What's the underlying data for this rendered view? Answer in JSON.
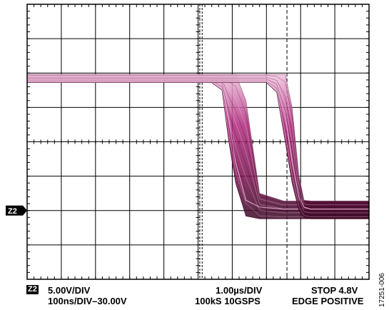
{
  "chart_data": {
    "type": "line",
    "title": "",
    "xlabel": "",
    "ylabel": "",
    "grid": true,
    "divisions": {
      "x": 10,
      "y": 8
    },
    "xlim": [
      -5,
      5
    ],
    "ylim": [
      -20,
      20
    ],
    "x_units": "µs",
    "y_units": "V",
    "trigger_time": 2.6,
    "ground_marker_level": -10,
    "series": [
      {
        "values_note": "",
        "x": [
          -5,
          -0.1,
          0.4,
          0.7,
          0.9,
          1.1,
          1.4,
          1.8,
          2.5,
          5
        ],
        "y": [
          9.2,
          9.2,
          9.2,
          8.5,
          3,
          -3,
          -8.5,
          -9.5,
          -9.8,
          -9.8
        ],
        "ymin": [
          8.6,
          8.6,
          8.6,
          7.5,
          0,
          -6,
          -10.8,
          -11.2,
          -11.2,
          -11.2
        ],
        "ymax": [
          9.8,
          9.8,
          9.8,
          9.8,
          9.8,
          9.8,
          6,
          -7.5,
          -8.6,
          -8.6
        ]
      },
      {
        "x": [
          -5,
          2.0,
          2.3,
          2.55,
          2.75,
          2.95,
          3.1,
          3.3,
          5
        ],
        "y": [
          9.2,
          9.2,
          8.5,
          4,
          -3,
          -8,
          -9.5,
          -9.8,
          -9.8
        ],
        "ymin": [
          8.6,
          8.6,
          7.2,
          0,
          -6,
          -10,
          -11,
          -11.2,
          -11.2
        ],
        "ymax": [
          9.8,
          9.8,
          9.8,
          9.8,
          5,
          -5,
          -8.5,
          -8.6,
          -8.6
        ]
      }
    ]
  },
  "scope": {
    "channel_marker": "Z2",
    "bottom_badge": "Z2",
    "vdiv": "5.00V/DIV",
    "timebase_offset": "100ns/DIV–30.00V",
    "timebase": "1.00µs/DIV",
    "sampling": "100kS  10GSPS",
    "trigger_mode": "STOP 4.8V",
    "trigger_edge": "EDGE POSITIVE"
  },
  "figure_id": "17251-006",
  "colors": {
    "trace": "#9c1a6b",
    "trace_dark": "#4a0c2e",
    "trace_light": "#e8a9cf",
    "grid": "#000000"
  }
}
